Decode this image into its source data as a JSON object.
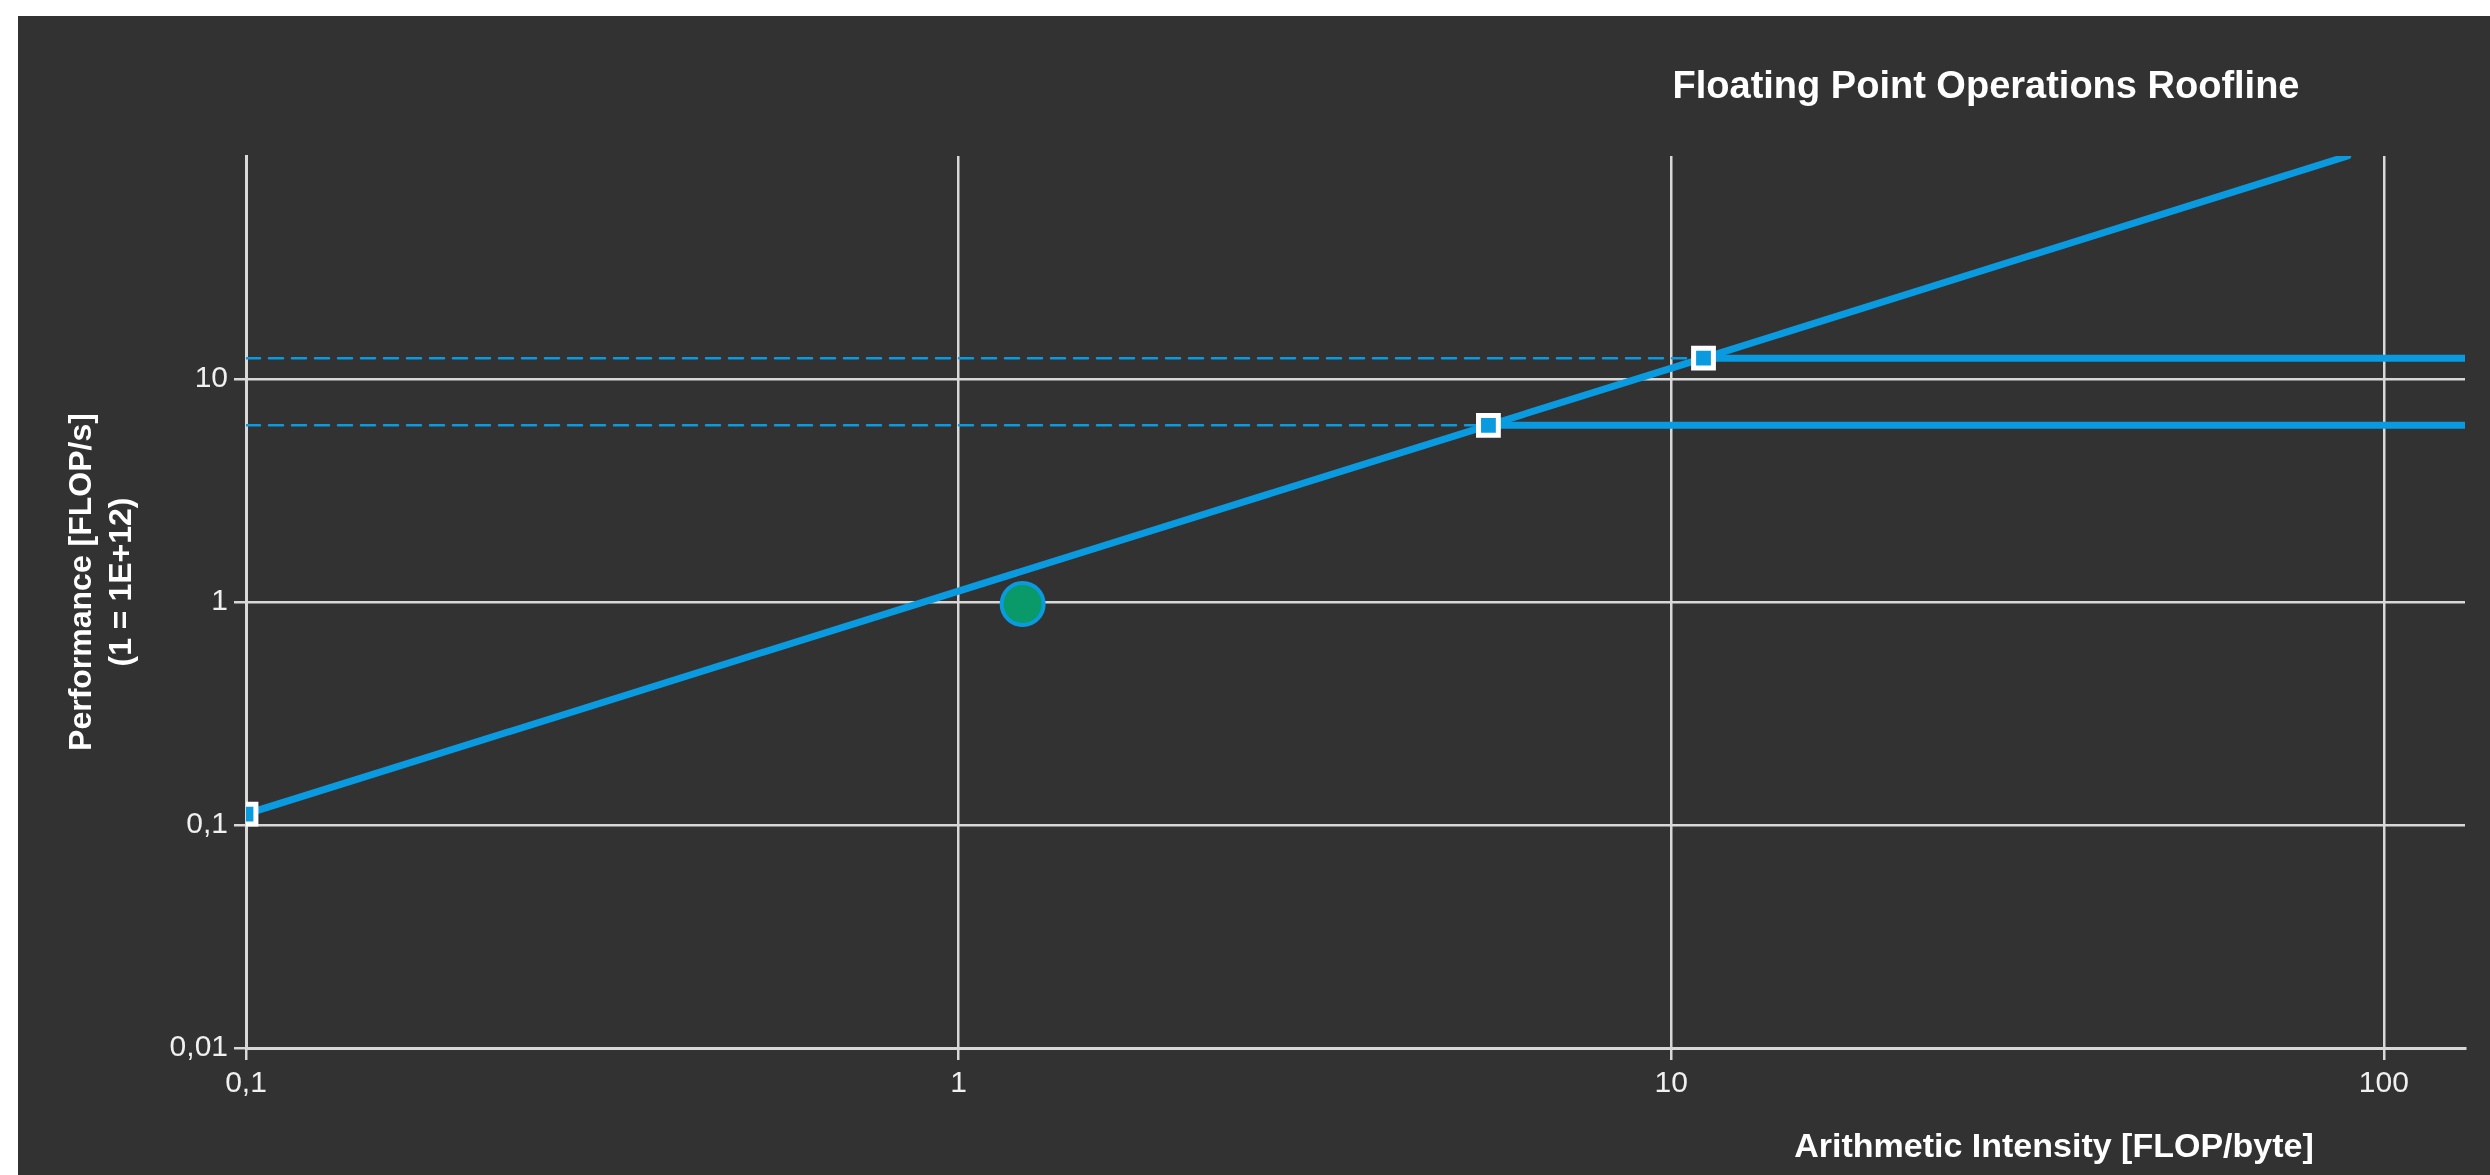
{
  "chart_data": {
    "type": "line",
    "title": "Floating Point Operations Roofline",
    "xlabel": "Arithmetic Intensity [FLOP/byte]",
    "ylabel": "Performance [FLOP/s]\n(1 = 1E+12)",
    "log": "xy",
    "grid": true,
    "xlim": [
      0.1,
      130
    ],
    "xticks": [
      {
        "value": 0.1,
        "label": "0,1"
      },
      1,
      10,
      100
    ],
    "ylim": [
      0.01,
      100
    ],
    "yticks": [
      {
        "value": 0.01,
        "label": "0,01"
      },
      {
        "value": 0.1,
        "label": "0,1"
      },
      1,
      10
    ],
    "series": [
      {
        "color": "#0a9ae0",
        "x": [
          0.1,
          5.54,
          11.1
        ],
        "values": [
          0.112,
          6.2,
          12.4
        ],
        "marker": "square",
        "line_style": "solid"
      },
      {
        "color": "#0a9ae0",
        "x": [
          11.1,
          89
        ],
        "values": [
          12.4,
          100
        ],
        "marker": "none",
        "line_style": "solid"
      },
      {
        "color": "#0a9ae0",
        "x": [
          11.1,
          130
        ],
        "values": [
          12.4,
          12.4
        ],
        "marker": "none",
        "line_style": "solid"
      },
      {
        "color": "#0a9ae0",
        "x": [
          5.54,
          130
        ],
        "values": [
          6.2,
          6.2
        ],
        "marker": "none",
        "line_style": "solid"
      },
      {
        "color": "#0a9ae0",
        "x": [
          0.1,
          11.1
        ],
        "values": [
          12.4,
          12.4
        ],
        "marker": "none",
        "line_style": "dashed"
      },
      {
        "color": "#0a9ae0",
        "x": [
          0.1,
          5.54
        ],
        "values": [
          6.2,
          6.2
        ],
        "marker": "none",
        "line_style": "dashed"
      },
      {
        "type": "scatter",
        "color": "#0a9a6a",
        "x": [
          1.23
        ],
        "values": [
          0.98
        ],
        "marker": "circle"
      }
    ]
  }
}
